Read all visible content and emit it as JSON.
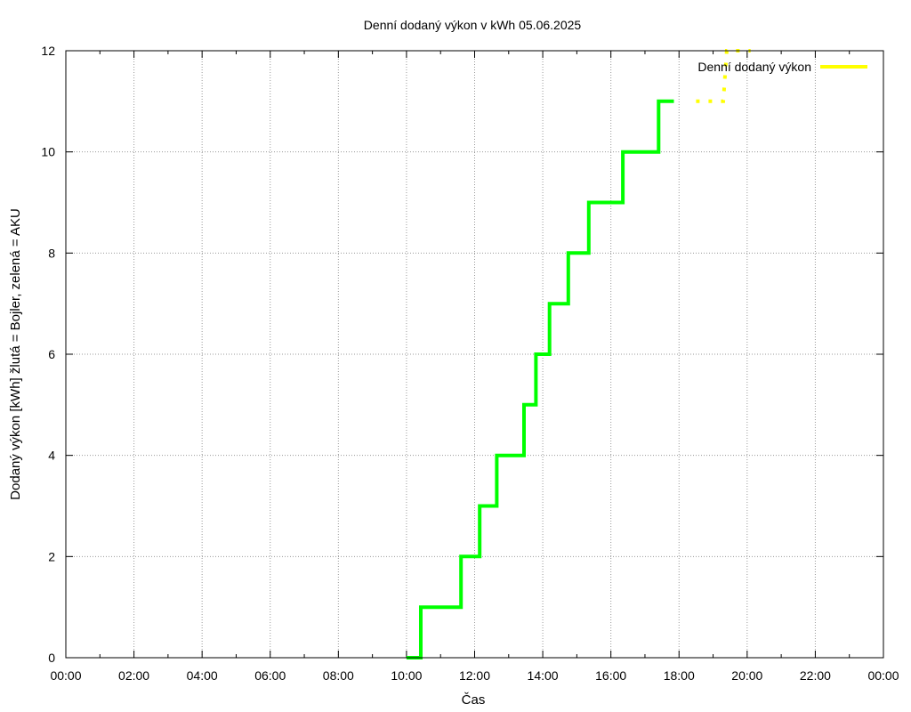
{
  "chart_data": {
    "type": "line",
    "title": "Denní dodaný výkon v kWh 05.06.2025",
    "xlabel": "Čas",
    "ylabel": "Dodaný výkon [kWh]  žlutá = Bojler, zelená = AKU",
    "xlim": [
      0,
      24
    ],
    "ylim": [
      0,
      12
    ],
    "x_ticks": [
      "00:00",
      "02:00",
      "04:00",
      "06:00",
      "08:00",
      "10:00",
      "12:00",
      "14:00",
      "16:00",
      "18:00",
      "20:00",
      "22:00",
      "00:00"
    ],
    "y_ticks": [
      "0",
      "2",
      "4",
      "6",
      "8",
      "10",
      "12"
    ],
    "grid": true,
    "legend_position": "top-right",
    "series": [
      {
        "name": "Denní dodaný výkon",
        "color": "#ffff00",
        "style": "dotted",
        "points": [
          [
            18.5,
            11
          ],
          [
            19.3,
            11
          ],
          [
            19.4,
            12
          ],
          [
            20.1,
            12
          ]
        ]
      },
      {
        "name": "",
        "color": "#00ff00",
        "style": "step",
        "points": [
          [
            10.0,
            0
          ],
          [
            10.42,
            0
          ],
          [
            10.42,
            1
          ],
          [
            11.6,
            1
          ],
          [
            11.6,
            2
          ],
          [
            12.15,
            2
          ],
          [
            12.15,
            3
          ],
          [
            12.65,
            3
          ],
          [
            12.65,
            4
          ],
          [
            13.45,
            4
          ],
          [
            13.45,
            5
          ],
          [
            13.8,
            5
          ],
          [
            13.8,
            6
          ],
          [
            14.2,
            6
          ],
          [
            14.2,
            7
          ],
          [
            14.75,
            7
          ],
          [
            14.75,
            8
          ],
          [
            15.35,
            8
          ],
          [
            15.35,
            9
          ],
          [
            16.35,
            9
          ],
          [
            16.35,
            10
          ],
          [
            17.4,
            10
          ],
          [
            17.4,
            11
          ],
          [
            17.85,
            11
          ]
        ]
      }
    ]
  }
}
